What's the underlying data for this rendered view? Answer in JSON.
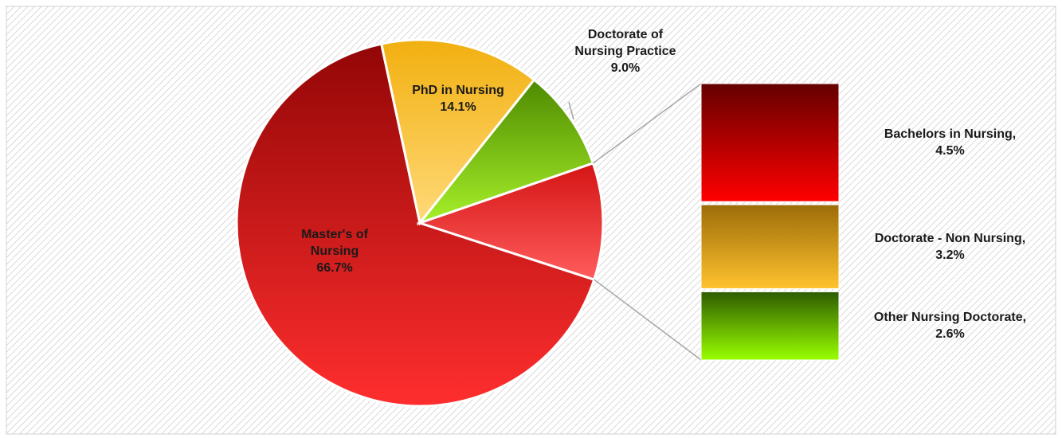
{
  "chart_data": {
    "type": "pie-of-bar",
    "pie": {
      "categories": [
        "Master's of Nursing",
        "PhD in Nursing",
        "Doctorate of Nursing Practice"
      ],
      "values": [
        66.7,
        14.1,
        9.0
      ],
      "value_labels": [
        "66.7%",
        "14.1%",
        "9.0%"
      ],
      "gradients": [
        [
          "#930606",
          "#ff2e2e"
        ],
        [
          "#f2b010",
          "#ffd978"
        ],
        [
          "#4e8a00",
          "#a6f02a"
        ]
      ],
      "other_gradient": [
        "#d41414",
        "#ff5c5c"
      ]
    },
    "bar": {
      "categories": [
        "Bachelors in Nursing,",
        "Doctorate - Non Nursing,",
        "Other Nursing Doctorate,"
      ],
      "values": [
        4.5,
        3.2,
        2.6
      ],
      "value_labels": [
        "4.5%",
        "3.2%",
        "2.6%"
      ],
      "gradients": [
        [
          "#650000",
          "#ff0000"
        ],
        [
          "#9c6c08",
          "#ffc22e"
        ],
        [
          "#2e5c00",
          "#99ff00"
        ]
      ]
    }
  }
}
